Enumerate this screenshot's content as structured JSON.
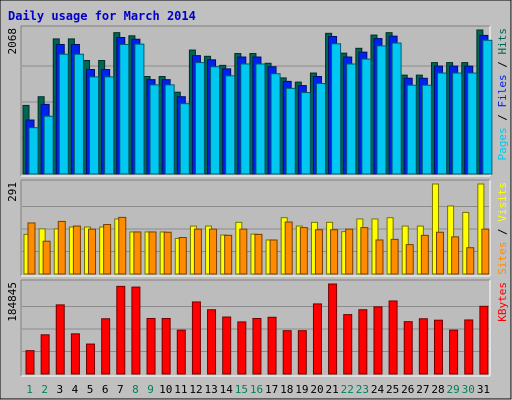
{
  "chart_data": {
    "type": "bar",
    "title": "Daily usage for March 2014",
    "categories": [
      "1",
      "2",
      "3",
      "4",
      "5",
      "6",
      "7",
      "8",
      "9",
      "10",
      "11",
      "12",
      "13",
      "14",
      "15",
      "16",
      "17",
      "18",
      "19",
      "20",
      "21",
      "22",
      "23",
      "24",
      "25",
      "26",
      "27",
      "28",
      "29",
      "30",
      "31"
    ],
    "weekend_days": [
      "1",
      "2",
      "8",
      "9",
      "15",
      "16",
      "22",
      "23",
      "29",
      "30"
    ],
    "colors": {
      "hits": "#006654",
      "files": "#0022ee",
      "pages": "#00c8f0",
      "visits": "#ffff00",
      "sites": "#ff8c00",
      "kbytes": "#ff0000",
      "title": "#0000cc",
      "weekday_label": "#000000",
      "weekend_label": "#00805c",
      "panel_bg": "#bcbcbc",
      "outer_bg": "#c0c0c0"
    },
    "panels": [
      {
        "id": "hits_files_pages",
        "max_label": "2068",
        "max_value": 2068,
        "legend": [
          {
            "text": "Pages",
            "color": "#00c8f0"
          },
          {
            "text": " / ",
            "color": "#000000"
          },
          {
            "text": "Files",
            "color": "#0022ee"
          },
          {
            "text": " / ",
            "color": "#000000"
          },
          {
            "text": "Hits",
            "color": "#006654"
          }
        ],
        "series": [
          {
            "name": "Hits",
            "color": "#006654",
            "values": [
              985,
              1110,
              1940,
              1940,
              1630,
              1630,
              2030,
              1985,
              1400,
              1400,
              1175,
              1780,
              1690,
              1560,
              1730,
              1730,
              1590,
              1380,
              1320,
              1450,
              2020,
              1735,
              1805,
              1995,
              2030,
              1420,
              1420,
              1600,
              1600,
              1600,
              2068
            ]
          },
          {
            "name": "Files",
            "color": "#0022ee",
            "values": [
              775,
              1000,
              1860,
              1860,
              1500,
              1500,
              1960,
              1935,
              1355,
              1355,
              1110,
              1700,
              1640,
              1510,
              1680,
              1680,
              1540,
              1330,
              1270,
              1400,
              1975,
              1680,
              1750,
              1945,
              1980,
              1375,
              1375,
              1550,
              1550,
              1550,
              1990
            ]
          },
          {
            "name": "Pages",
            "color": "#00c8f0",
            "values": [
              665,
              830,
              1720,
              1720,
              1395,
              1395,
              1860,
              1865,
              1280,
              1280,
              1010,
              1600,
              1540,
              1410,
              1580,
              1580,
              1440,
              1230,
              1170,
              1300,
              1870,
              1580,
              1650,
              1840,
              1880,
              1275,
              1275,
              1450,
              1450,
              1450,
              1920
            ]
          }
        ]
      },
      {
        "id": "visits_sites",
        "max_label": "291",
        "max_value": 291,
        "legend": [
          {
            "text": "Sites",
            "color": "#ff8c00"
          },
          {
            "text": " / ",
            "color": "#000000"
          },
          {
            "text": "Visits",
            "color": "#ffff00"
          }
        ],
        "series": [
          {
            "name": "Visits",
            "color": "#ffff00",
            "values": [
              128,
              146,
              146,
              152,
              152,
              152,
              178,
              136,
              136,
              136,
              115,
              155,
              155,
              126,
              167,
              129,
              110,
              182,
              155,
              167,
              167,
              137,
              178,
              178,
              182,
              155,
              155,
              291,
              220,
              199,
              291
            ]
          },
          {
            "name": "Sites",
            "color": "#ff8c00",
            "values": [
              165,
              106,
              170,
              155,
              145,
              160,
              183,
              136,
              136,
              135,
              118,
              145,
              145,
              125,
              145,
              128,
              110,
              168,
              150,
              143,
              143,
              145,
              150,
              110,
              112,
              95,
              125,
              135,
              120,
              85,
              145
            ]
          }
        ]
      },
      {
        "id": "kbytes",
        "max_label": "184845",
        "max_value": 184845,
        "legend": [
          {
            "text": "KBytes",
            "color": "#ff0000"
          }
        ],
        "series": [
          {
            "name": "KBytes",
            "color": "#ff0000",
            "values": [
              48000,
              80500,
              142000,
              82500,
              61500,
              113500,
              180000,
              178500,
              114000,
              114000,
              90000,
              148000,
              132000,
              117000,
              107000,
              114000,
              116500,
              89000,
              89000,
              144000,
              184845,
              122000,
              132000,
              138000,
              150000,
              107500,
              113500,
              110500,
              90000,
              111000,
              139000
            ]
          }
        ]
      }
    ]
  }
}
